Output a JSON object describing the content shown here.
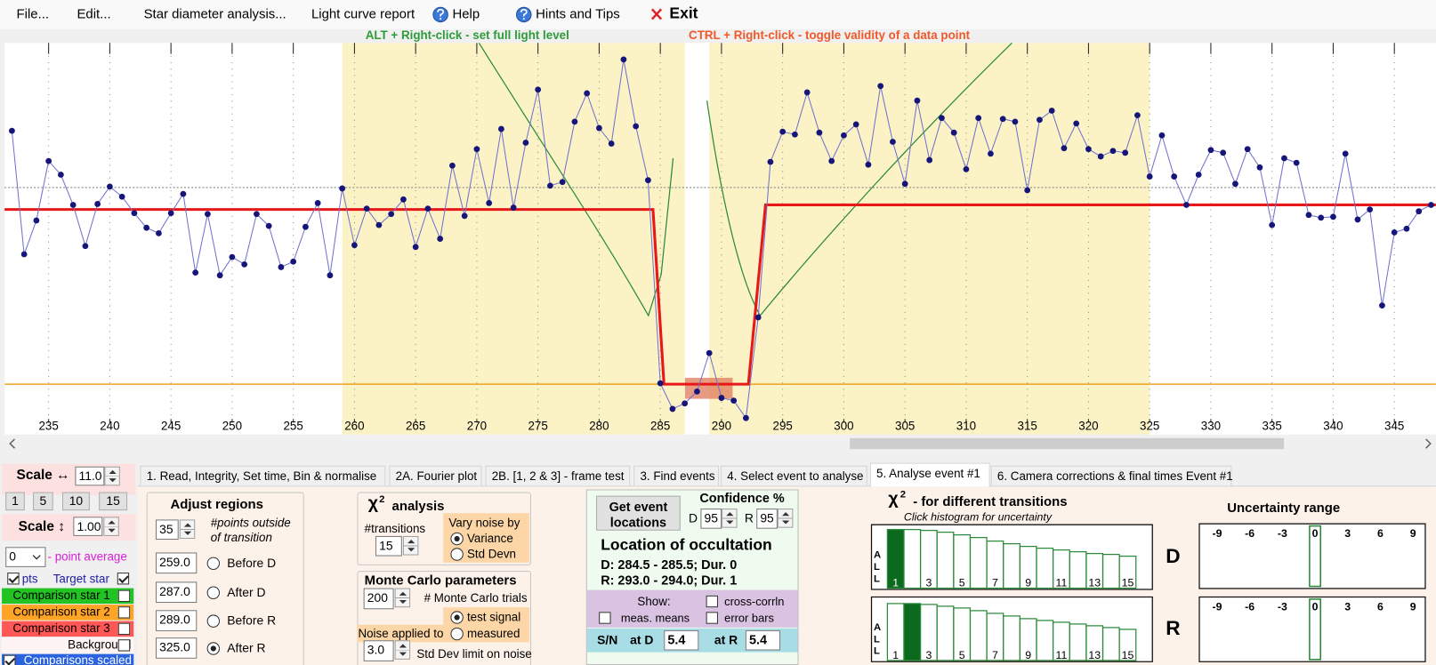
{
  "menu": {
    "file": "File...",
    "edit": "Edit...",
    "star_diameter": "Star diameter analysis...",
    "light_curve_report": "Light curve report",
    "help": "Help",
    "hints": "Hints and Tips",
    "exit": "Exit"
  },
  "hints": {
    "alt": "ALT + Right-click  -  set full light level",
    "ctrl": "CTRL + Right-click  -  toggle validity of a data point"
  },
  "chart_data": {
    "type": "line",
    "x": [
      232,
      233,
      234,
      235,
      236,
      237,
      238,
      239,
      240,
      241,
      242,
      243,
      244,
      245,
      246,
      247,
      248,
      249,
      250,
      251,
      252,
      253,
      254,
      255,
      256,
      257,
      258,
      259,
      260,
      261,
      262,
      263,
      264,
      265,
      266,
      267,
      268,
      269,
      270,
      271,
      272,
      273,
      274,
      275,
      276,
      277,
      278,
      279,
      280,
      281,
      282,
      283,
      284,
      285,
      286,
      287,
      288,
      289,
      290,
      291,
      292,
      293,
      294,
      295,
      296,
      297,
      298,
      299,
      300,
      301,
      302,
      303,
      304,
      305,
      306,
      307,
      308,
      309,
      310,
      311,
      312,
      313,
      314,
      315,
      316,
      317,
      318,
      319,
      320,
      321,
      322,
      323,
      324,
      325,
      326,
      327,
      328,
      329,
      330,
      331,
      332,
      333,
      334,
      335,
      336,
      337,
      338,
      339,
      340,
      341,
      342,
      343,
      344,
      345,
      346,
      347,
      348
    ],
    "values": [
      277,
      142,
      179,
      244,
      229,
      196,
      151,
      197,
      216,
      205,
      187,
      171,
      165,
      187,
      208,
      122,
      186,
      119,
      139,
      131,
      186,
      173,
      128,
      134,
      172,
      198,
      119,
      214,
      152,
      192,
      174,
      186,
      202,
      150,
      192,
      159,
      239,
      184,
      257,
      198,
      279,
      193,
      264,
      322,
      217,
      221,
      287,
      318,
      280,
      263,
      355,
      282,
      223,
      1,
      -27,
      -21,
      -8,
      34,
      -15,
      -18,
      -37,
      73,
      243,
      276,
      273,
      319,
      275,
      244,
      272,
      284,
      240,
      326,
      265,
      219,
      310,
      245,
      291,
      275,
      235,
      291,
      252,
      290,
      287,
      212,
      289,
      299,
      258,
      285,
      257,
      249,
      255,
      253,
      294,
      227,
      272,
      227,
      196,
      229,
      256,
      253,
      219,
      257,
      237,
      174,
      247,
      242,
      185,
      182,
      183,
      252,
      180,
      191,
      86,
      166,
      170,
      189,
      196
    ],
    "color": "#7070d0",
    "marker_color": "#16167a",
    "model": {
      "x": [
        231.4,
        284.4,
        285.3,
        292.2,
        293.6,
        348.4
      ],
      "values": [
        191,
        191,
        0,
        0,
        196,
        196
      ],
      "color": "#e81818"
    },
    "xlim": [
      231.4,
      348.4
    ],
    "ylim": [
      -38,
      373
    ],
    "xticks": [
      235,
      240,
      245,
      250,
      255,
      260,
      265,
      270,
      275,
      280,
      285,
      290,
      295,
      300,
      305,
      310,
      315,
      320,
      325,
      330,
      335,
      340,
      345
    ]
  },
  "left_panel": {
    "scale_h_label": "Scale ↔",
    "scale_h": "11.0",
    "step_buttons": [
      "1",
      "5",
      "10",
      "15"
    ],
    "scale_v_label": "Scale ↕",
    "scale_v": "1.00",
    "average": "0",
    "average_label": "- point average",
    "pts": "pts",
    "pts_checked": true,
    "target": "Target star",
    "target_checked": true,
    "comparisons": [
      {
        "label": "Comparison star 1",
        "color": "#22c322",
        "checked": false
      },
      {
        "label": "Comparison star 2",
        "color": "#ffa424",
        "checked": false
      },
      {
        "label": "Comparison star 3",
        "color": "#ff5656",
        "checked": false
      }
    ],
    "background": "Background",
    "background_checked": false,
    "scaled": "Comparisons scaled",
    "scaled_checked": true
  },
  "tabs": [
    "1.  Read, Integrity, Set time, Bin & normalise",
    "2A. Fourier plot",
    "2B. [1, 2 & 3] - frame test",
    "3. Find events",
    "4. Select event to analyse",
    "5. Analyse event #1",
    "6. Camera corrections & final times Event #1"
  ],
  "active_tab": 5,
  "adjust_regions": {
    "title": "Adjust regions",
    "points": "35",
    "points_label": [
      "#points outside",
      "of transition"
    ],
    "rows": [
      {
        "value": 259,
        "label": "259.0",
        "name": "Before D"
      },
      {
        "value": 287,
        "label": "287.0",
        "name": "After D"
      },
      {
        "value": 289,
        "label": "289.0",
        "name": "Before R"
      },
      {
        "value": 325,
        "label": "325.0",
        "name": "After R"
      }
    ],
    "selected": 3,
    "region_color": "#fbf3c6"
  },
  "chi_analysis": {
    "chi": "χ",
    "sup": "2",
    "title": "analysis",
    "transitions_label": "#transitions",
    "transitions": "15",
    "vary_label": "Vary noise by",
    "options": [
      "Variance",
      "Std Devn"
    ],
    "selected": 0
  },
  "monte_carlo": {
    "title": "Monte Carlo parameters",
    "trials": "200",
    "trials_label": "# Monte Carlo trials",
    "noise_label": "Noise applied to",
    "options": [
      "test signal",
      "measured"
    ],
    "selected": 0,
    "limit": "3.0",
    "limit_label": "Std Dev limit on noise"
  },
  "location": {
    "button": [
      "Get event",
      "locations"
    ],
    "confidence_label": "Confidence %",
    "d_label": "D",
    "d_conf": "95",
    "r_label": "R",
    "r_conf": "95",
    "title": "Location of occultation",
    "d_result": "D: 284.5 - 285.5; Dur. 0",
    "r_result": "R: 293.0 - 294.0; Dur. 1",
    "show_label": "Show:",
    "show": [
      {
        "label": "meas. means",
        "checked": false
      },
      {
        "label": "cross-corrln",
        "checked": false
      },
      {
        "label": "error bars",
        "checked": false
      }
    ],
    "sn_label": "S/N",
    "at_d": "at D",
    "sn_d": "5.4",
    "at_r": "at R",
    "sn_r": "5.4"
  },
  "chi2": {
    "chi": "χ",
    "sup": "2",
    "title": "- for different transitions",
    "subtitle": "Click histogram for uncertainty",
    "axis_label": [
      "A",
      "L",
      "L"
    ],
    "categories": [
      1,
      null,
      3,
      null,
      5,
      null,
      7,
      null,
      9,
      null,
      11,
      null,
      13,
      null,
      15
    ],
    "ylim": [
      0,
      70
    ],
    "bar_color": "#2a8a3a",
    "highlight_color": "#0b6a1e",
    "panels": [
      {
        "label": "D",
        "values": [
          66,
          66,
          65,
          63,
          60,
          57,
          53,
          50,
          47,
          45,
          43,
          41,
          39,
          38,
          36
        ],
        "highlight": 0
      },
      {
        "label": "R",
        "values": [
          64,
          64,
          63,
          61,
          59,
          56,
          53,
          50,
          47,
          45,
          43,
          41,
          39,
          37,
          35
        ],
        "highlight": 1
      }
    ]
  },
  "uncertainty": {
    "title": "Uncertainty range",
    "xlim": [
      -10.6,
      10.1
    ],
    "xticks": [
      -9,
      -6,
      -3,
      0,
      3,
      6,
      9
    ],
    "panels": [
      {
        "value": 0
      },
      {
        "value": 0
      }
    ]
  }
}
